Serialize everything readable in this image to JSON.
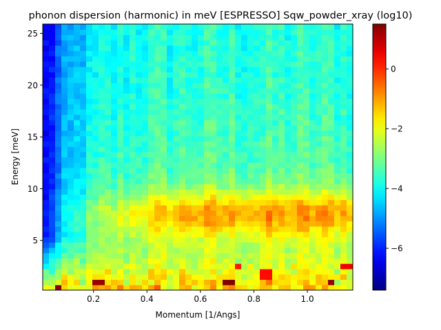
{
  "chart_data": {
    "type": "heatmap",
    "title": "phonon dispersion (harmonic) in meV [ESPRESSO] Sqw_powder_xray (log10)",
    "xlabel": "Momentum [1/Angs]",
    "ylabel": "Energy [meV]",
    "xlim": [
      0.01,
      1.17
    ],
    "ylim": [
      0.2,
      25.9
    ],
    "xticks": [
      0.2,
      0.4,
      0.6,
      0.8,
      1.0
    ],
    "xtick_labels": [
      "0.2",
      "0.4",
      "0.6",
      "0.8",
      "1.0"
    ],
    "yticks": [
      5,
      10,
      15,
      20,
      25
    ],
    "ytick_labels": [
      "5",
      "10",
      "15",
      "20",
      "25"
    ],
    "colorbar": {
      "colormap": "jet",
      "vmin": -7.4,
      "vmax": 1.5,
      "ticks": [
        0,
        -2,
        -4,
        -6
      ],
      "tick_labels": [
        "0",
        "−2",
        "−4",
        "−6"
      ]
    },
    "grid": {
      "x_bins": 50,
      "y_bins": 50,
      "x_min": 0.01,
      "x_max": 1.17,
      "y_min": 0.2,
      "y_max": 25.9
    },
    "value_model": {
      "background_at_low_q": -7.0,
      "high_energy_plateau": -3.9,
      "low_energy_level": -1.7,
      "peak_band_energy_meV": 7.5,
      "peak_band_level": -1.0,
      "bright_spots": [
        {
          "q": 0.07,
          "e": 0.5,
          "value": 1.4
        },
        {
          "q": 0.22,
          "e": 0.9,
          "value": 1.3
        },
        {
          "q": 0.71,
          "e": 0.9,
          "value": 1.5
        },
        {
          "q": 1.09,
          "e": 0.9,
          "value": 1.3
        },
        {
          "q": 1.15,
          "e": 2.5,
          "value": 0.5
        },
        {
          "q": 0.85,
          "e": 1.8,
          "value": 0.3
        },
        {
          "q": 0.74,
          "e": 2.5,
          "value": 0.2
        }
      ]
    }
  }
}
